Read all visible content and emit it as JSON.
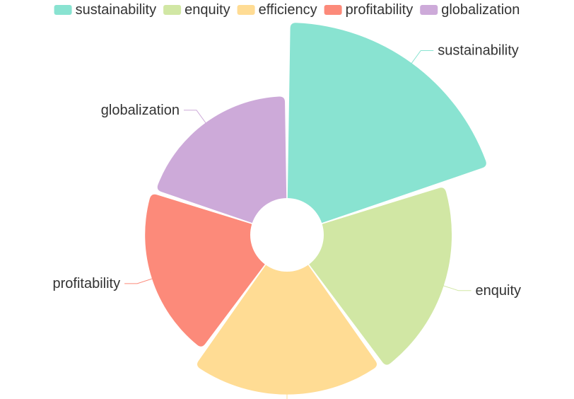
{
  "chart_data": {
    "type": "pie",
    "subtype": "rose",
    "categories": [
      "sustainability",
      "enquity",
      "efficiency",
      "profitability",
      "globalization"
    ],
    "values": [
      100,
      73,
      70,
      60,
      58
    ],
    "colors": [
      "#89e3d1",
      "#d1e7a4",
      "#ffdc94",
      "#fc8a7a",
      "#cdaad9"
    ],
    "legend": {
      "position": "top",
      "items": [
        "sustainability",
        "enquity",
        "efficiency",
        "profitability",
        "globalization"
      ]
    }
  }
}
